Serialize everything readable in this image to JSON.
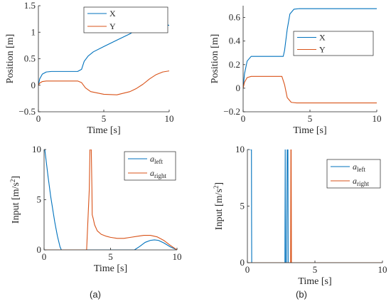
{
  "colors": {
    "blue": "#0072BD",
    "orange": "#D95319"
  },
  "captions": [
    "(a)",
    "(b)"
  ],
  "chart_data": [
    {
      "type": "line",
      "xlabel": "Time [s]",
      "ylabel": "Position [m]",
      "xlim": [
        0,
        10
      ],
      "ylim": [
        -0.5,
        1.5
      ],
      "xticks": [
        "0",
        "5",
        "10"
      ],
      "yticks": [
        "−0.5",
        "0",
        "0.5",
        "1",
        "1.5"
      ],
      "legend_position": "top-right",
      "series": [
        {
          "name": "X",
          "color": "blue",
          "x": [
            0,
            0.1,
            0.3,
            0.6,
            1,
            1.5,
            2,
            3,
            3.3,
            3.5,
            3.8,
            4.2,
            5,
            6,
            7,
            7.5,
            8,
            8.5,
            9,
            9.5,
            10
          ],
          "y": [
            0,
            0.12,
            0.21,
            0.25,
            0.26,
            0.26,
            0.26,
            0.26,
            0.3,
            0.45,
            0.55,
            0.63,
            0.73,
            0.85,
            0.97,
            1.05,
            1.12,
            1.16,
            1.17,
            1.15,
            1.13
          ]
        },
        {
          "name": "Y",
          "color": "orange",
          "x": [
            0,
            0.1,
            0.3,
            0.6,
            1,
            2,
            3,
            3.3,
            3.6,
            4,
            5,
            6,
            7,
            7.5,
            8,
            8.5,
            9,
            9.5,
            10
          ],
          "y": [
            0,
            0.04,
            0.07,
            0.08,
            0.08,
            0.08,
            0.08,
            0.05,
            -0.05,
            -0.12,
            -0.17,
            -0.18,
            -0.12,
            -0.06,
            0.02,
            0.12,
            0.2,
            0.25,
            0.27
          ]
        }
      ]
    },
    {
      "type": "line",
      "xlabel": "Time [s]",
      "ylabel": "Position [m]",
      "xlim": [
        0,
        10
      ],
      "ylim": [
        -0.2,
        0.7
      ],
      "xticks": [
        "0",
        "5",
        "10"
      ],
      "yticks": [
        "−0.2",
        "0",
        "0.2",
        "0.4",
        "0.6"
      ],
      "legend_position": "middle-right",
      "series": [
        {
          "name": "X",
          "color": "blue",
          "x": [
            0,
            0.1,
            0.3,
            0.6,
            1,
            2,
            3,
            3.1,
            3.3,
            3.5,
            3.8,
            4.2,
            5,
            6,
            8,
            10
          ],
          "y": [
            0,
            0.12,
            0.23,
            0.27,
            0.27,
            0.27,
            0.27,
            0.32,
            0.5,
            0.63,
            0.67,
            0.675,
            0.675,
            0.675,
            0.675,
            0.675
          ]
        },
        {
          "name": "Y",
          "color": "orange",
          "x": [
            0,
            0.1,
            0.3,
            0.6,
            1,
            2,
            2.9,
            3.1,
            3.3,
            3.6,
            4,
            5,
            6,
            8,
            10
          ],
          "y": [
            0,
            0.05,
            0.09,
            0.1,
            0.1,
            0.1,
            0.1,
            0.03,
            -0.08,
            -0.12,
            -0.125,
            -0.125,
            -0.125,
            -0.125,
            -0.125
          ]
        }
      ]
    },
    {
      "type": "line",
      "xlabel": "Time [s]",
      "ylabel": "Input [m/s",
      "ylabel_sup": "2",
      "ylabel_end": "]",
      "xlim": [
        0,
        10
      ],
      "ylim": [
        0,
        10
      ],
      "xticks": [
        "0",
        "5",
        "10"
      ],
      "yticks": [
        "0",
        "5",
        "10"
      ],
      "legend_position": "top-right",
      "series": [
        {
          "name": "a",
          "sub": "left",
          "color": "blue",
          "x": [
            0,
            0.05,
            0.1,
            0.3,
            0.5,
            0.8,
            1,
            1.2,
            1.3,
            3,
            6.8,
            7.2,
            7.6,
            8,
            8.3,
            8.6,
            9,
            9.5,
            10
          ],
          "y": [
            10,
            10,
            9.5,
            7.3,
            5.3,
            2.8,
            1.4,
            0.3,
            0,
            0,
            0,
            0.35,
            0.75,
            0.95,
            1.0,
            0.95,
            0.7,
            0.3,
            0
          ]
        },
        {
          "name": "a",
          "sub": "right",
          "color": "orange",
          "x": [
            0,
            1,
            2,
            3.2,
            3.4,
            3.45,
            3.55,
            3.6,
            3.62,
            3.7,
            3.8,
            4,
            4.3,
            4.7,
            5,
            5.5,
            6,
            6.5,
            7,
            7.5,
            8,
            8.5,
            9,
            9.5,
            10
          ],
          "y": [
            0,
            0,
            0,
            0,
            6,
            10,
            10,
            6,
            3.5,
            3.1,
            2.5,
            1.9,
            1.55,
            1.35,
            1.25,
            1.15,
            1.15,
            1.25,
            1.35,
            1.45,
            1.45,
            1.3,
            0.95,
            0.45,
            0
          ]
        }
      ]
    },
    {
      "type": "line",
      "xlabel": "Time [s]",
      "ylabel": "Input [m/s",
      "ylabel_sup": "2",
      "ylabel_end": "]",
      "xlim": [
        0,
        10
      ],
      "ylim": [
        0,
        10
      ],
      "xticks": [
        "0",
        "5",
        "10"
      ],
      "yticks": [
        "0",
        "5",
        "10"
      ],
      "legend_position": "top-right",
      "series": [
        {
          "name": "a",
          "sub": "left",
          "color": "blue",
          "x": [
            0,
            0.29,
            0.3,
            0.31,
            0.32,
            2.78,
            2.8,
            2.82,
            2.9,
            2.95,
            3.0,
            3.02,
            3.05,
            10
          ],
          "y": [
            10,
            10,
            10,
            3.6,
            0,
            0,
            10,
            0,
            0,
            10,
            10,
            0,
            0,
            0
          ]
        },
        {
          "name": "a",
          "sub": "right",
          "color": "orange",
          "x": [
            0,
            3.2,
            3.22,
            3.24,
            3.26,
            10
          ],
          "y": [
            0,
            0,
            10,
            10,
            0,
            0
          ]
        }
      ]
    }
  ]
}
